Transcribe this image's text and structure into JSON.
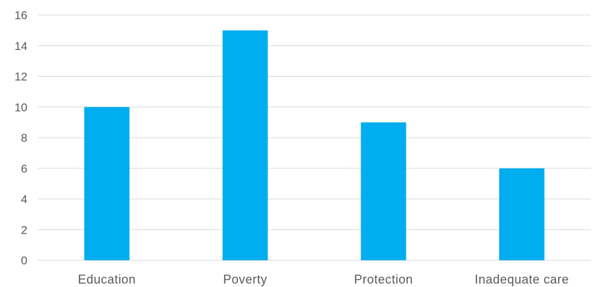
{
  "chart_data": {
    "type": "bar",
    "title": "",
    "xlabel": "",
    "ylabel": "",
    "categories": [
      "Education",
      "Poverty",
      "Protection",
      "Inadequate care"
    ],
    "values": [
      10,
      15,
      9,
      6
    ],
    "ylim": [
      0,
      16
    ],
    "yticks": [
      "0",
      "2",
      "4",
      "6",
      "8",
      "10",
      "12",
      "14",
      "16"
    ],
    "grid": true,
    "legend": "none",
    "bar_color": "#00adef",
    "grid_color": "#d9d9d9",
    "text_color": "#595959"
  }
}
